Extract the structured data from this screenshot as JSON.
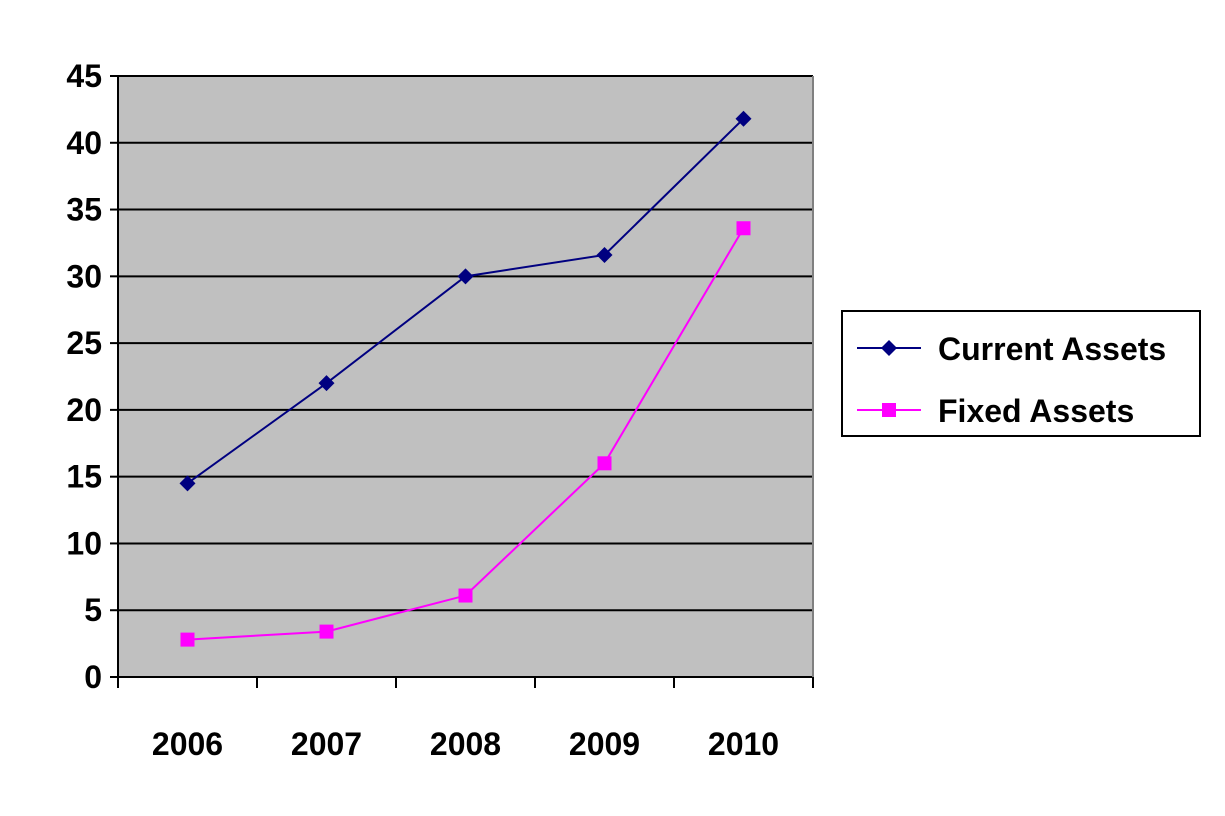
{
  "chart_data": {
    "type": "line",
    "categories": [
      "2006",
      "2007",
      "2008",
      "2009",
      "2010"
    ],
    "series": [
      {
        "name": "Current Assets",
        "values": [
          14.5,
          22,
          30,
          31.6,
          41.8
        ],
        "color": "#000080",
        "marker": "diamond"
      },
      {
        "name": "Fixed Assets",
        "values": [
          2.8,
          3.4,
          6.1,
          16,
          33.6
        ],
        "color": "#ff00ff",
        "marker": "square"
      }
    ],
    "ylim": [
      0,
      45
    ],
    "yticks": [
      "0",
      "5",
      "10",
      "15",
      "20",
      "25",
      "30",
      "35",
      "40",
      "45"
    ],
    "grid": true,
    "legend_position": "right",
    "plot_background": "#c0c0c0"
  }
}
